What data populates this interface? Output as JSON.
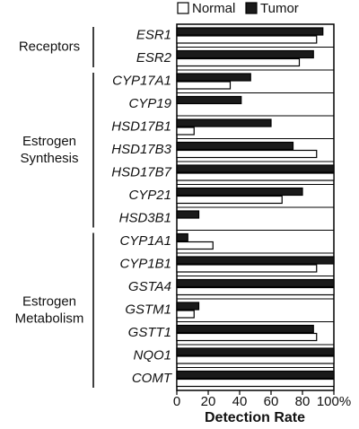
{
  "chart_data": {
    "type": "bar",
    "orientation": "horizontal",
    "groups": [
      {
        "label": [
          "Receptors"
        ],
        "categories": [
          "ESR1",
          "ESR2"
        ]
      },
      {
        "label": [
          "Estrogen",
          "Synthesis"
        ],
        "categories": [
          "CYP17A1",
          "CYP19",
          "HSD17B1",
          "HSD17B3",
          "HSD17B7",
          "CYP21",
          "HSD3B1"
        ]
      },
      {
        "label": [
          "Estrogen",
          "Metabolism"
        ],
        "categories": [
          "CYP1A1",
          "CYP1B1",
          "GSTA4",
          "GSTM1",
          "GSTT1",
          "NQO1",
          "COMT"
        ]
      }
    ],
    "series": [
      {
        "name": "Normal",
        "color": "#ffffff",
        "values": [
          89,
          78,
          34,
          0,
          11,
          89,
          100,
          67,
          0,
          23,
          89,
          100,
          11,
          89,
          100,
          100
        ]
      },
      {
        "name": "Tumor",
        "color": "#1a1a1a",
        "values": [
          93,
          87,
          47,
          41,
          60,
          74,
          100,
          80,
          14,
          7,
          100,
          100,
          14,
          87,
          100,
          100
        ]
      }
    ],
    "xlabel": "Detection Rate",
    "xlim": [
      0,
      100
    ],
    "xticks": [
      0,
      20,
      40,
      60,
      80,
      {
        "value": 100,
        "label": "100%"
      }
    ]
  }
}
